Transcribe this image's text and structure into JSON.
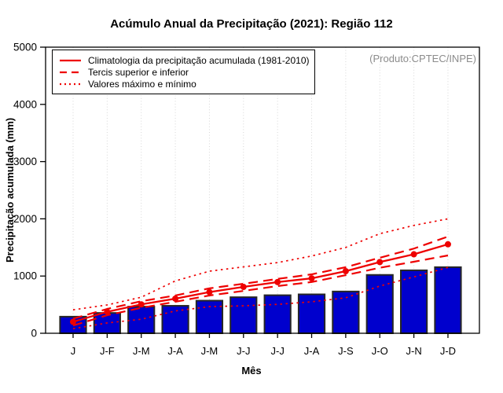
{
  "figure": {
    "title": "Acúmulo Anual da Precipitação (2021): Região 112",
    "ylabel": "Precipitação acumulada (mm)",
    "xlabel": "Mês",
    "annotation": "(Produto:CPTEC/INPE)"
  },
  "legend": {
    "items": [
      {
        "label": "Climatologia da precipitação acumulada (1981-2010)",
        "style": "solid"
      },
      {
        "label": "Tercis superior e inferior",
        "style": "dashed"
      },
      {
        "label": "Valores máximo e mínimo",
        "style": "dotted"
      }
    ]
  },
  "colors": {
    "bar_fill": "#0000CD",
    "bar_border": "#262626",
    "line_red": "#EE0000",
    "grid": "#D6D6D6",
    "axis": "#000000",
    "annotation_gray": "#8C8C8C"
  },
  "chart_data": {
    "type": "bar",
    "title": "Acúmulo Anual da Precipitação (2021): Região 112",
    "xlabel": "Mês",
    "ylabel": "Precipitação acumulada (mm)",
    "annotation": "(Produto:CPTEC/INPE)",
    "categories": [
      "J",
      "J-F",
      "J-M",
      "J-A",
      "J-M",
      "J-J",
      "J-J",
      "J-A",
      "J-S",
      "J-O",
      "J-N",
      "J-D"
    ],
    "bars": {
      "values": [
        290,
        355,
        465,
        480,
        570,
        630,
        665,
        680,
        730,
        1020,
        1100,
        1155
      ]
    },
    "series": [
      {
        "id": "climatologia",
        "name": "Climatologia da precipitação acumulada (1981-2010)",
        "style": "solid",
        "marker": true,
        "values": [
          200,
          375,
          505,
          605,
          720,
          810,
          895,
          960,
          1085,
          1245,
          1380,
          1555
        ]
      },
      {
        "id": "tercil-superior",
        "name": "Tercil superior",
        "style": "dashed",
        "marker": false,
        "values": [
          255,
          425,
          560,
          660,
          785,
          865,
          950,
          1030,
          1155,
          1320,
          1480,
          1690
        ]
      },
      {
        "id": "tercil-inferior",
        "name": "Tercil inferior",
        "style": "dashed",
        "marker": false,
        "values": [
          135,
          315,
          445,
          550,
          660,
          740,
          825,
          895,
          1015,
          1145,
          1250,
          1360
        ]
      },
      {
        "id": "valores-maximos",
        "name": "Valores máximos",
        "style": "dotted",
        "marker": false,
        "values": [
          410,
          495,
          630,
          915,
          1085,
          1160,
          1235,
          1350,
          1500,
          1740,
          1885,
          2000
        ]
      },
      {
        "id": "valores-minimos",
        "name": "Valores mínimos",
        "style": "dotted",
        "marker": false,
        "values": [
          80,
          180,
          245,
          390,
          465,
          480,
          505,
          550,
          620,
          825,
          985,
          1150
        ]
      }
    ],
    "ylim": [
      0,
      5000
    ],
    "yticks": [
      0,
      1000,
      2000,
      3000,
      4000,
      5000
    ],
    "grid": "vertical-dotted",
    "legend_position": "top-left"
  }
}
